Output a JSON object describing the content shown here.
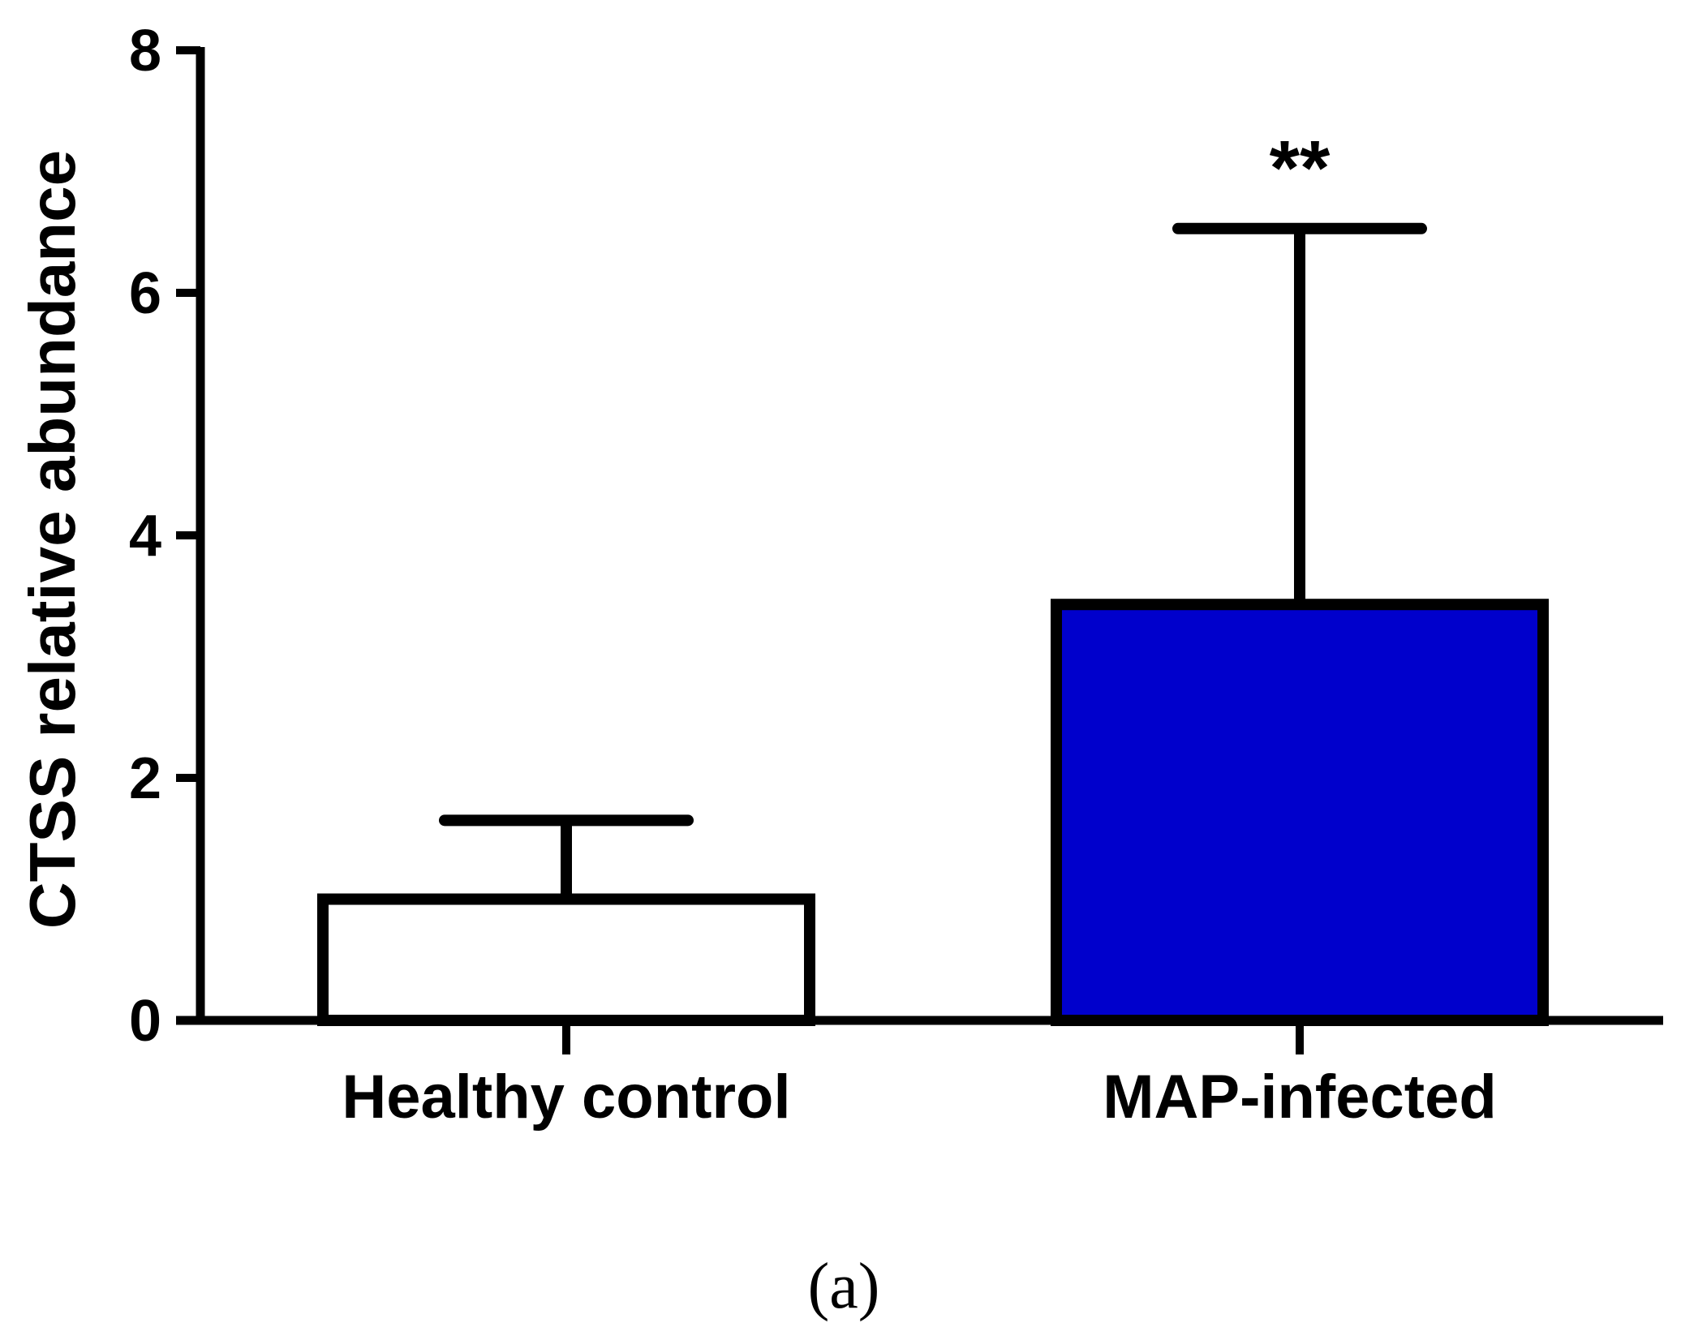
{
  "chart_data": {
    "type": "bar",
    "title": "",
    "xlabel": "",
    "ylabel": "CTSS relative abundance",
    "ylim": [
      0,
      8
    ],
    "yticks": [
      0,
      2,
      4,
      6,
      8
    ],
    "categories": [
      "Healthy control",
      "MAP-infected"
    ],
    "values": [
      1.0,
      3.43
    ],
    "error_upper": [
      0.65,
      3.1
    ],
    "bar_colors": [
      "#ffffff",
      "#0000cc"
    ],
    "annotations": [
      "",
      "**"
    ],
    "panel_label": "(a)"
  }
}
